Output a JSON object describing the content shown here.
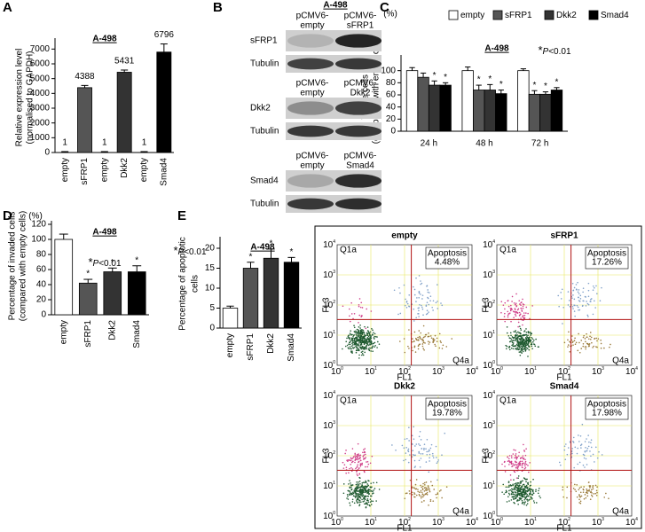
{
  "chart_data": [
    {
      "panel": "A",
      "type": "bar",
      "title": "A-498",
      "ylabel": [
        "Relative expression level",
        "(normalised to GAPDH)"
      ],
      "categories": [
        "empty",
        "sFRP1",
        "empty",
        "Dkk2",
        "empty",
        "Smad4"
      ],
      "values": [
        1,
        4388,
        1,
        5431,
        1,
        6796
      ],
      "errors": [
        60,
        150,
        60,
        150,
        60,
        550
      ],
      "colors": [
        "#ffffff",
        "#555555",
        "#ffffff",
        "#333333",
        "#ffffff",
        "#000000"
      ],
      "data_labels": true,
      "ylim": [
        0,
        7500
      ],
      "yticks": [
        0,
        1000,
        2000,
        3000,
        4000,
        5000,
        6000,
        7000
      ]
    },
    {
      "panel": "C",
      "type": "grouped_bar",
      "title": "A-498",
      "unit": "(%)",
      "annotation": [
        "*",
        "P",
        "<0.01"
      ],
      "ylabel": [
        "Viable cells (%)",
        "(compared with empty cells)"
      ],
      "star": "*",
      "categories": [
        "24 h",
        "48 h",
        "72 h"
      ],
      "series": [
        {
          "name": "empty",
          "color": "#ffffff",
          "values": [
            100,
            100,
            100
          ],
          "errors": [
            5,
            6,
            3
          ],
          "significant": [
            false,
            false,
            false
          ]
        },
        {
          "name": "sFRP1",
          "color": "#555555",
          "values": [
            89,
            68,
            61
          ],
          "errors": [
            7,
            8,
            6
          ],
          "significant": [
            false,
            true,
            true
          ]
        },
        {
          "name": "Dkk2",
          "color": "#333333",
          "values": [
            76,
            68,
            61
          ],
          "errors": [
            7,
            9,
            4
          ],
          "significant": [
            true,
            true,
            true
          ]
        },
        {
          "name": "Smad4",
          "color": "#000000",
          "values": [
            76,
            62,
            68
          ],
          "errors": [
            4,
            6,
            4
          ],
          "significant": [
            true,
            true,
            true
          ]
        }
      ],
      "legend": "top",
      "ylim": [
        0,
        120
      ],
      "yticks": [
        0,
        20,
        40,
        60,
        80,
        100
      ]
    },
    {
      "panel": "D",
      "type": "bar",
      "title": "A-498",
      "unit": "(%)",
      "annotation": [
        "*",
        "P",
        "<0.01"
      ],
      "ylabel": [
        "Percentage of invaded cells",
        "(compared with empty cells)"
      ],
      "star": "*",
      "categories": [
        "empty",
        "sFRP1",
        "Dkk2",
        "Smad4"
      ],
      "values": [
        100,
        42,
        57,
        57
      ],
      "errors": [
        7,
        5,
        5,
        8
      ],
      "significant": [
        false,
        true,
        true,
        true
      ],
      "colors": [
        "#ffffff",
        "#555555",
        "#333333",
        "#000000"
      ],
      "ylim": [
        0,
        120
      ],
      "yticks": [
        0,
        20,
        40,
        60,
        80,
        100,
        120
      ]
    },
    {
      "panel": "E",
      "type": "bar",
      "title": "A-498",
      "annotation": [
        "*",
        "P",
        "<0.01"
      ],
      "ylabel": [
        "Percentage of apoptotic",
        "cells"
      ],
      "star": "*",
      "categories": [
        "empty",
        "sFRP1",
        "Dkk2",
        "Smad4"
      ],
      "values": [
        5,
        15,
        17.5,
        16.5
      ],
      "errors": [
        0.5,
        1.5,
        2.3,
        1.2
      ],
      "significant": [
        false,
        true,
        true,
        true
      ],
      "colors": [
        "#ffffff",
        "#555555",
        "#333333",
        "#000000"
      ],
      "ylim": [
        0,
        22
      ],
      "yticks": [
        0,
        5,
        10,
        15,
        20
      ]
    }
  ],
  "blot": {
    "panel": "B",
    "title": "A-498",
    "sections": [
      {
        "lanes": [
          [
            "pCMV6-",
            "empty"
          ],
          [
            "pCMV6-",
            "sFRP1"
          ]
        ],
        "rows": [
          "sFRP1",
          "Tubulin"
        ]
      },
      {
        "lanes": [
          [
            "pCMV6-",
            "empty"
          ],
          [
            "pCMV6-",
            "Dkk2"
          ]
        ],
        "rows": [
          "Dkk2",
          "Tubulin"
        ]
      },
      {
        "lanes": [
          [
            "pCMV6-",
            "empty"
          ],
          [
            "pCMV6-",
            "Smad4"
          ]
        ],
        "rows": [
          "Smad4",
          "Tubulin"
        ]
      }
    ]
  },
  "flow": {
    "x_axis": "FL1",
    "y_axis": "FL3",
    "tick_base": "10",
    "ticks": [
      "0",
      "1",
      "2",
      "3",
      "4"
    ],
    "quadrants": [
      "Q1a",
      "Q4a"
    ],
    "plots": [
      {
        "title": "empty",
        "box_title": "Apoptosis",
        "box_value": "4.48%"
      },
      {
        "title": "sFRP1",
        "box_title": "Apoptosis",
        "box_value": "17.26%"
      },
      {
        "title": "Dkk2",
        "box_title": "Apoptosis",
        "box_value": "19.78%"
      },
      {
        "title": "Smad4",
        "box_title": "Apoptosis",
        "box_value": "17.98%"
      }
    ]
  }
}
